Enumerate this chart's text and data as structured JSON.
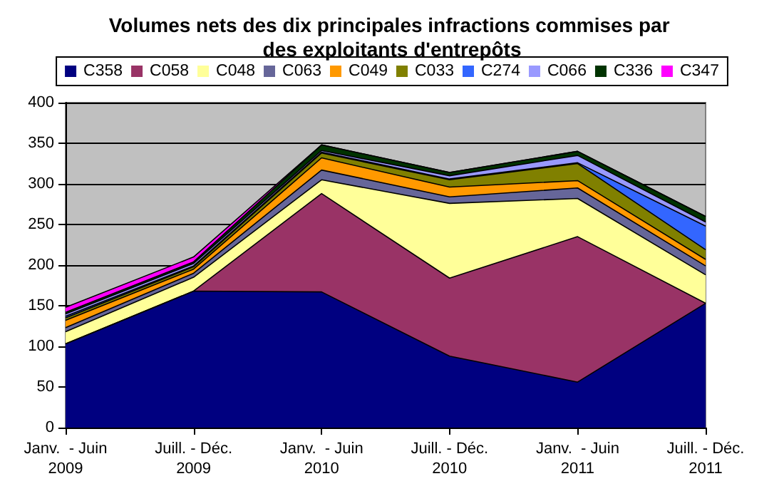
{
  "chart_data": {
    "type": "area",
    "stacked": true,
    "title": "Volumes nets des dix principales infractions commises par des exploitants d'entrepôts",
    "categories": [
      "Janv.  - Juin\n2009",
      "Juill. - Déc.\n2009",
      "Janv.  - Juin\n2010",
      "Juill. - Déc.\n2010",
      "Janv.  - Juin\n2011",
      "Juill. - Déc.\n2011"
    ],
    "series": [
      {
        "name": "C358",
        "color": "#000080",
        "values": [
          103,
          168,
          167,
          88,
          56,
          153
        ]
      },
      {
        "name": "C058",
        "color": "#993366",
        "values": [
          0,
          0,
          121,
          96,
          179,
          0
        ]
      },
      {
        "name": "C048",
        "color": "#ffff99",
        "values": [
          15,
          17,
          17,
          92,
          47,
          35
        ]
      },
      {
        "name": "C063",
        "color": "#666699",
        "values": [
          5,
          5,
          12,
          8,
          13,
          11
        ]
      },
      {
        "name": "C049",
        "color": "#ff9900",
        "values": [
          9,
          5,
          15,
          12,
          9,
          8
        ]
      },
      {
        "name": "C033",
        "color": "#808000",
        "values": [
          3,
          3,
          6,
          9,
          21,
          12
        ]
      },
      {
        "name": "C274",
        "color": "#3366ff",
        "values": [
          2,
          1,
          1,
          1,
          1,
          29
        ]
      },
      {
        "name": "C066",
        "color": "#9999ff",
        "values": [
          3,
          3,
          2,
          4,
          9,
          5
        ]
      },
      {
        "name": "C336",
        "color": "#003300",
        "values": [
          2,
          2,
          7,
          4,
          5,
          7
        ]
      },
      {
        "name": "C347",
        "color": "#ff00ff",
        "values": [
          6,
          6,
          0,
          0,
          0,
          0
        ]
      }
    ],
    "ylim": [
      0,
      400
    ],
    "yticks": [
      0,
      50,
      100,
      150,
      200,
      250,
      300,
      350,
      400
    ],
    "grid": "y",
    "legend": "top"
  }
}
